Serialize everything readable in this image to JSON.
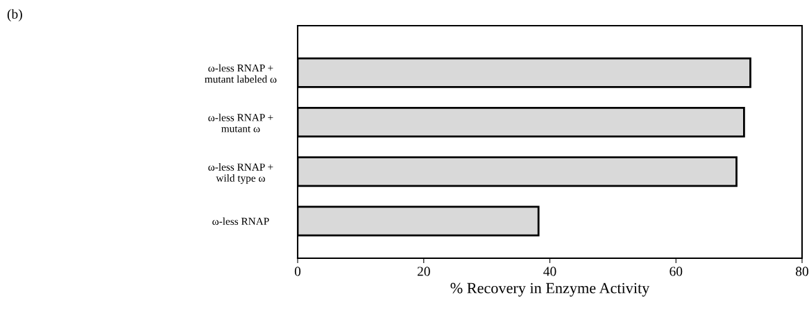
{
  "chart_data": {
    "type": "bar",
    "orientation": "horizontal",
    "categories": [
      "ω-less RNAP +\nmutant labeled ω",
      "ω-less RNAP +\nmutant ω",
      "ω-less RNAP +\nwild type ω",
      "ω-less RNAP"
    ],
    "values": [
      71.8,
      70.8,
      69.6,
      38.2
    ],
    "color": "#d9d9d9",
    "xlabel": "% Recovery in Enzyme Activity",
    "xlim": [
      0,
      80
    ],
    "xticks": [
      0,
      20,
      40,
      60,
      80
    ],
    "grid": false,
    "legend": false,
    "annotations": [
      "(b)"
    ]
  }
}
